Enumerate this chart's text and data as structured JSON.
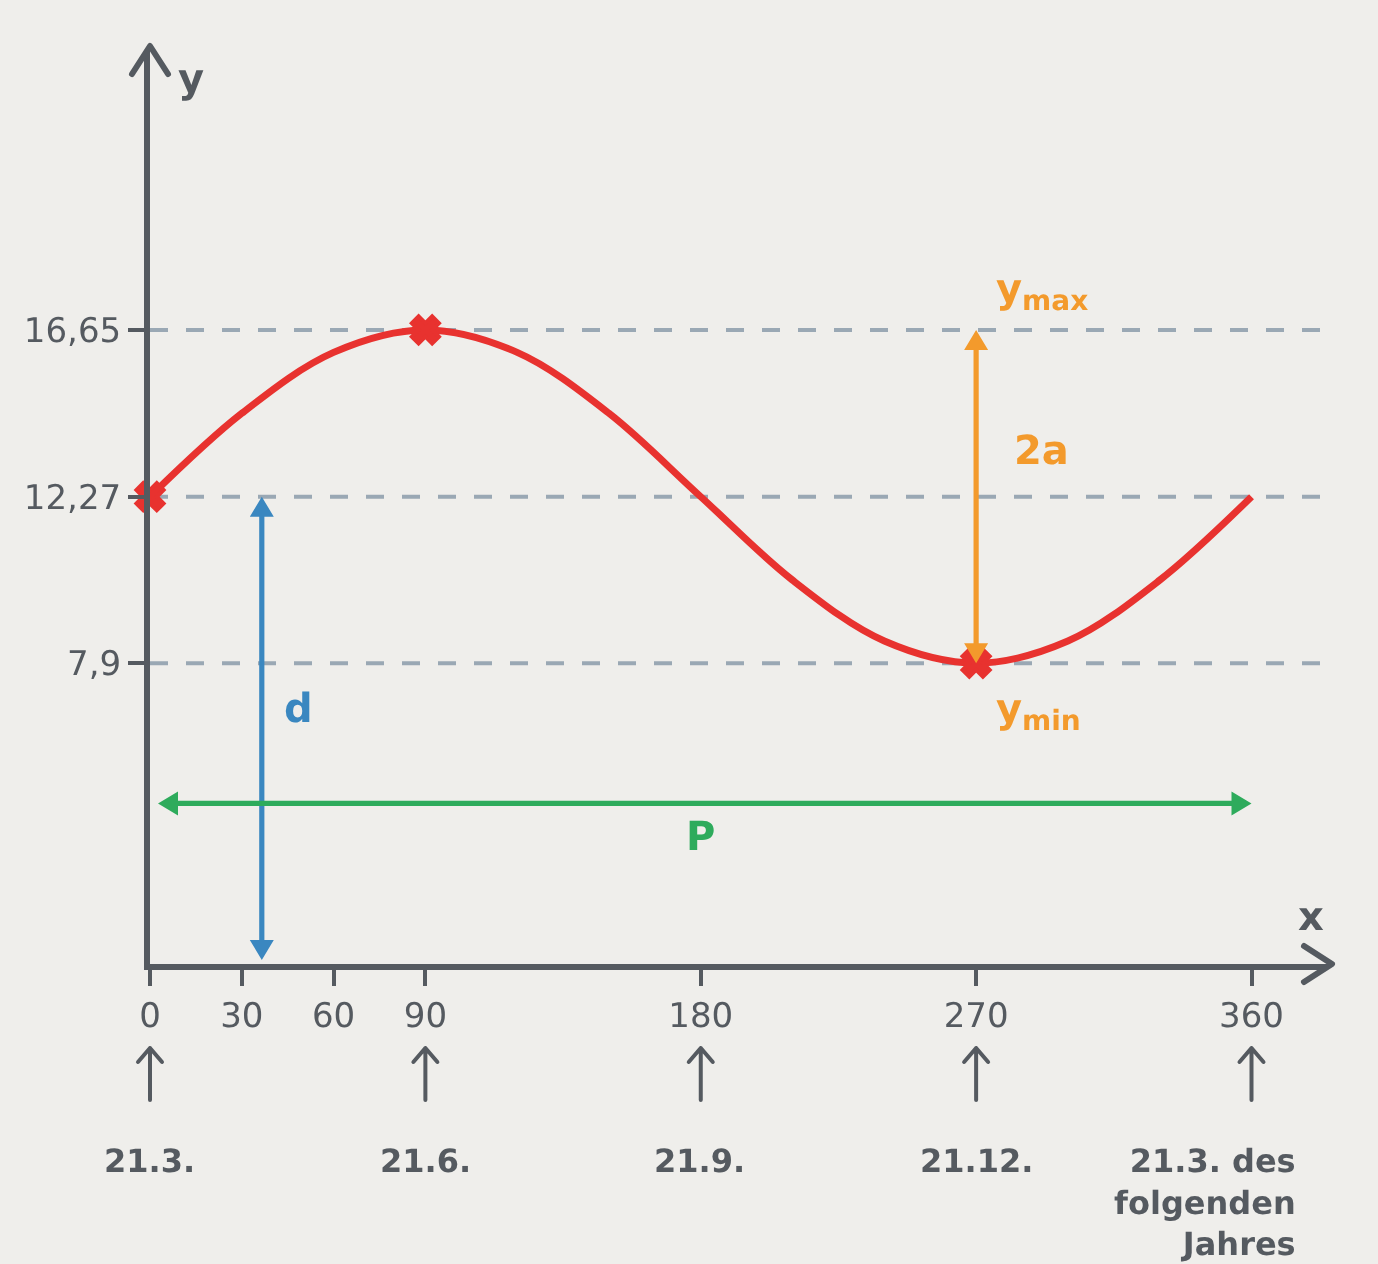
{
  "chart_data": {
    "type": "line",
    "xlabel": "x",
    "ylabel": "y",
    "xlim": [
      0,
      385
    ],
    "ylim": [
      0,
      24
    ],
    "xticks": [
      0,
      30,
      60,
      90,
      180,
      270,
      360
    ],
    "yticks": [
      {
        "value": 7.9,
        "label": "7,9"
      },
      {
        "value": 12.27,
        "label": "12,27"
      },
      {
        "value": 16.65,
        "label": "16,65"
      }
    ],
    "series": [
      {
        "color": "#e8322f",
        "marker": "none",
        "x": [
          0,
          30,
          60,
          90,
          120,
          150,
          180,
          210,
          240,
          270,
          300,
          330,
          360
        ],
        "values": [
          12.27,
          14.46,
          16.06,
          16.65,
          16.06,
          14.46,
          12.27,
          10.08,
          8.48,
          7.9,
          8.48,
          10.08,
          12.27
        ]
      },
      {
        "type": "scatter",
        "color": "#e8322f",
        "marker": "cross",
        "x": [
          0,
          90,
          270
        ],
        "values": [
          12.27,
          16.65,
          7.9
        ]
      }
    ],
    "ref_lines": [
      {
        "axis": "y",
        "value": 16.65,
        "color": "#9aa8b4",
        "line_style": "dashed"
      },
      {
        "axis": "y",
        "value": 12.27,
        "color": "#9aa8b4",
        "line_style": "dashed"
      },
      {
        "axis": "y",
        "value": 7.9,
        "color": "#9aa8b4",
        "line_style": "dashed"
      }
    ],
    "annotations": [
      "d",
      "P",
      "2a",
      {
        "text": "y$_{max}$",
        "x": 270,
        "y": 16.65
      },
      {
        "text": "y$_{min}$",
        "x": 270,
        "y": 7.9
      },
      "21.3.",
      "21.6.",
      "21.9.",
      "21.12.",
      "21.3. des\nfolgenden\nJahres"
    ]
  }
}
